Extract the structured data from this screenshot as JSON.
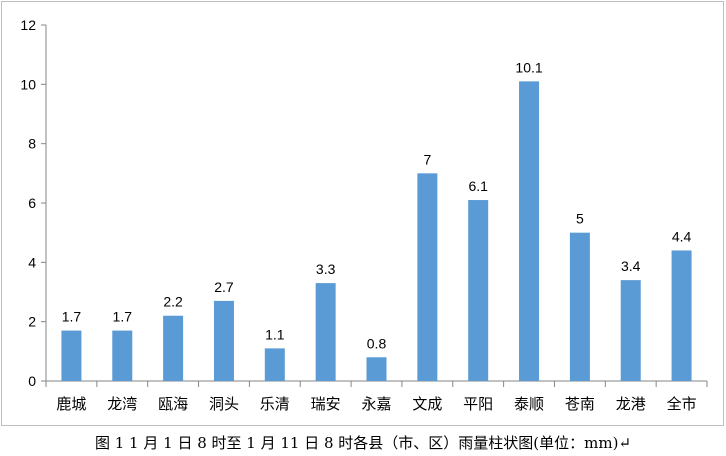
{
  "caption": "图 1  1 月 1 日 8 时至 1 月 11 日 8 时各县（市、区）雨量柱状图(单位：mm)↵",
  "chart_data": {
    "type": "bar",
    "categories": [
      "鹿城",
      "龙湾",
      "瓯海",
      "洞头",
      "乐清",
      "瑞安",
      "永嘉",
      "文成",
      "平阳",
      "泰顺",
      "苍南",
      "龙港",
      "全市"
    ],
    "values": [
      1.7,
      1.7,
      2.2,
      2.7,
      1.1,
      3.3,
      0.8,
      7,
      6.1,
      10.1,
      5,
      3.4,
      4.4
    ],
    "value_labels": [
      "1.7",
      "1.7",
      "2.2",
      "2.7",
      "1.1",
      "3.3",
      "0.8",
      "7",
      "6.1",
      "10.1",
      "5",
      "3.4",
      "4.4"
    ],
    "yticks": [
      "0",
      "2",
      "4",
      "6",
      "8",
      "10",
      "12"
    ],
    "ylim": [
      0,
      12
    ],
    "title": "",
    "xlabel": "",
    "ylabel": "",
    "grid": false,
    "legend": "none",
    "bar_color": "#5b9bd5",
    "axis_color": "#868686",
    "text_color": "#000000"
  }
}
